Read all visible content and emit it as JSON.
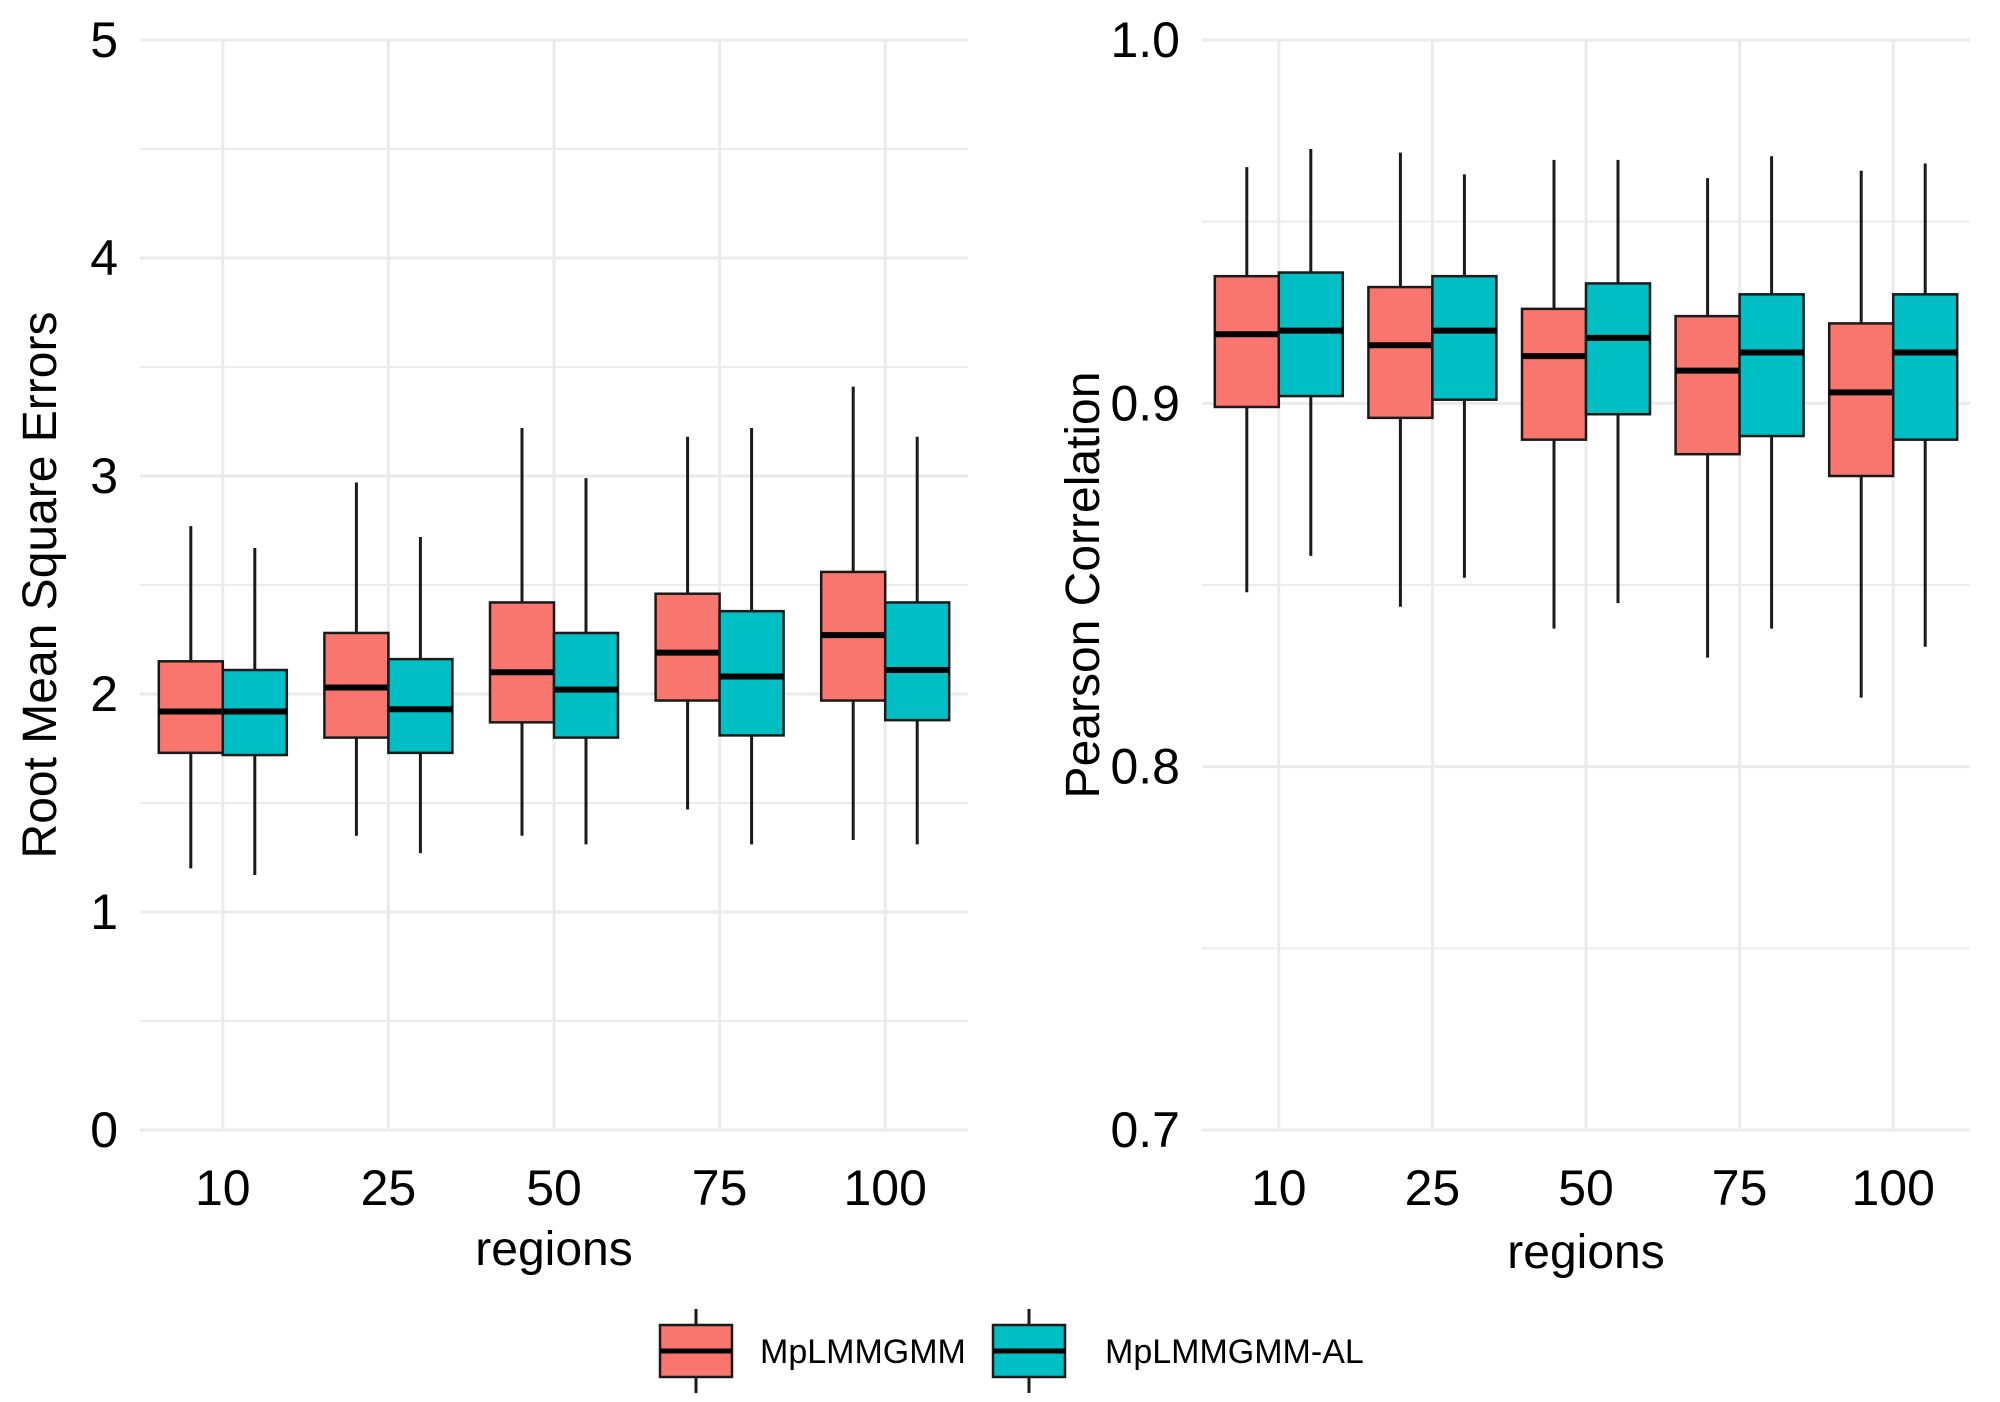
{
  "colors": {
    "MpLMMGMM": "#F8766D",
    "MpLMMGMM-AL": "#00BFC4",
    "grid": "#ebebeb",
    "outline": "#1a1a1a"
  },
  "legend": {
    "items": [
      "MpLMMGMM",
      "MpLMMGMM-AL"
    ]
  },
  "chart_data": [
    {
      "type": "box",
      "title": "",
      "xlabel": "regions",
      "ylabel": "Root Mean Square Errors",
      "ylim": [
        0,
        5
      ],
      "yticks": [
        "0",
        "1",
        "2",
        "3",
        "4",
        "5"
      ],
      "categories": [
        "10",
        "25",
        "50",
        "75",
        "100"
      ],
      "series": [
        {
          "name": "MpLMMGMM",
          "boxes": [
            {
              "min": 1.2,
              "q1": 1.73,
              "median": 1.92,
              "q3": 2.15,
              "max": 2.77
            },
            {
              "min": 1.35,
              "q1": 1.8,
              "median": 2.03,
              "q3": 2.28,
              "max": 2.97
            },
            {
              "min": 1.35,
              "q1": 1.87,
              "median": 2.1,
              "q3": 2.42,
              "max": 3.22
            },
            {
              "min": 1.47,
              "q1": 1.97,
              "median": 2.19,
              "q3": 2.46,
              "max": 3.18
            },
            {
              "min": 1.33,
              "q1": 1.97,
              "median": 2.27,
              "q3": 2.56,
              "max": 3.41
            }
          ]
        },
        {
          "name": "MpLMMGMM-AL",
          "boxes": [
            {
              "min": 1.17,
              "q1": 1.72,
              "median": 1.92,
              "q3": 2.11,
              "max": 2.67
            },
            {
              "min": 1.27,
              "q1": 1.73,
              "median": 1.93,
              "q3": 2.16,
              "max": 2.72
            },
            {
              "min": 1.31,
              "q1": 1.8,
              "median": 2.02,
              "q3": 2.28,
              "max": 2.99
            },
            {
              "min": 1.31,
              "q1": 1.81,
              "median": 2.08,
              "q3": 2.38,
              "max": 3.22
            },
            {
              "min": 1.31,
              "q1": 1.88,
              "median": 2.11,
              "q3": 2.42,
              "max": 3.18
            }
          ]
        }
      ]
    },
    {
      "type": "box",
      "title": "",
      "xlabel": "regions",
      "ylabel": "Pearson Correlation",
      "ylim": [
        0.7,
        1.0
      ],
      "yticks": [
        "0.7",
        "0.8",
        "0.9",
        "1.0"
      ],
      "categories": [
        "10",
        "25",
        "50",
        "75",
        "100"
      ],
      "series": [
        {
          "name": "MpLMMGMM",
          "boxes": [
            {
              "min": 0.848,
              "q1": 0.899,
              "median": 0.919,
              "q3": 0.935,
              "max": 0.965
            },
            {
              "min": 0.844,
              "q1": 0.896,
              "median": 0.916,
              "q3": 0.932,
              "max": 0.969
            },
            {
              "min": 0.838,
              "q1": 0.89,
              "median": 0.913,
              "q3": 0.926,
              "max": 0.967
            },
            {
              "min": 0.83,
              "q1": 0.886,
              "median": 0.909,
              "q3": 0.924,
              "max": 0.962
            },
            {
              "min": 0.819,
              "q1": 0.88,
              "median": 0.903,
              "q3": 0.922,
              "max": 0.964
            }
          ]
        },
        {
          "name": "MpLMMGMM-AL",
          "boxes": [
            {
              "min": 0.858,
              "q1": 0.902,
              "median": 0.92,
              "q3": 0.936,
              "max": 0.97
            },
            {
              "min": 0.852,
              "q1": 0.901,
              "median": 0.92,
              "q3": 0.935,
              "max": 0.963
            },
            {
              "min": 0.845,
              "q1": 0.897,
              "median": 0.918,
              "q3": 0.933,
              "max": 0.967
            },
            {
              "min": 0.838,
              "q1": 0.891,
              "median": 0.914,
              "q3": 0.93,
              "max": 0.968
            },
            {
              "min": 0.833,
              "q1": 0.89,
              "median": 0.914,
              "q3": 0.93,
              "max": 0.966
            }
          ]
        }
      ]
    }
  ]
}
